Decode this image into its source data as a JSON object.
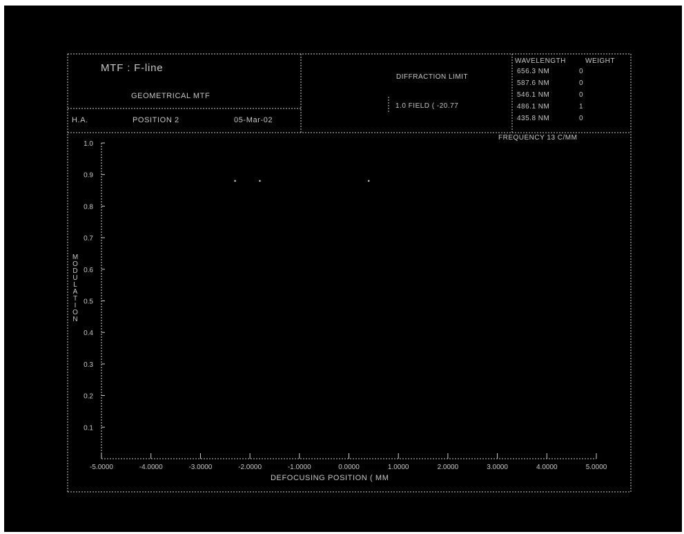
{
  "corner_id": "21596b",
  "header": {
    "title": "MTF : F-line",
    "subtitle": "GEOMETRICAL MTF",
    "company": "H.A.",
    "position": "POSITION 2",
    "date": "05-Mar-02"
  },
  "legend": {
    "diffraction_label": "DIFFRACTION LIMIT",
    "field_label": "1.0   FIELD ( -20.77",
    "wavelength_header": "WAVELENGTH",
    "weight_header": "WEIGHT",
    "wavelengths": [
      {
        "nm": "656.3 NM",
        "weight": "0"
      },
      {
        "nm": "587.6 NM",
        "weight": "0"
      },
      {
        "nm": "546.1 NM",
        "weight": "0"
      },
      {
        "nm": "486.1 NM",
        "weight": "1"
      },
      {
        "nm": "435.8 NM",
        "weight": "0"
      }
    ],
    "frequency": "FREQUENCY  13  C/MM"
  },
  "chart_data": {
    "type": "line",
    "xlabel": "DEFOCUSING POSITION ( MM",
    "ylabel": "MODULATION",
    "xlim": [
      -5.0,
      5.0
    ],
    "ylim": [
      0.0,
      1.0
    ],
    "x_ticks": [
      "-5.0000",
      "-4.0000",
      "-3.0000",
      "-2.0000",
      "-1.0000",
      "0.0000",
      "1.0000",
      "2.0000",
      "3.0000",
      "4.0000",
      "5.0000"
    ],
    "x_tick_values": [
      -5,
      -4,
      -3,
      -2,
      -1,
      0,
      1,
      2,
      3,
      4,
      5
    ],
    "y_ticks": [
      "0.1",
      "0.2",
      "0.3",
      "0.4",
      "0.5",
      "0.6",
      "0.7",
      "0.8",
      "0.9",
      "1.0"
    ],
    "y_tick_values": [
      0.1,
      0.2,
      0.3,
      0.4,
      0.5,
      0.6,
      0.7,
      0.8,
      0.9,
      1.0
    ],
    "grid": false,
    "series": [
      {
        "x": [
          -2.3,
          -1.8,
          0.4
        ],
        "y": [
          0.88,
          0.88,
          0.88
        ]
      }
    ]
  }
}
